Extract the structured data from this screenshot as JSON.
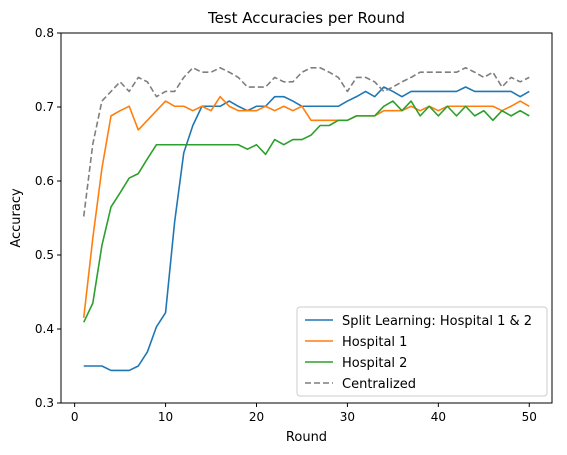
{
  "chart_data": {
    "type": "line",
    "title": "Test Accuracies per Round",
    "xlabel": "Round",
    "ylabel": "Accuracy",
    "xlim": [
      -1.5,
      52.5
    ],
    "ylim": [
      0.3,
      0.8
    ],
    "xticks": [
      0,
      10,
      20,
      30,
      40,
      50
    ],
    "yticks": [
      0.3,
      0.4,
      0.5,
      0.6,
      0.7,
      0.8
    ],
    "grid": false,
    "legend_position": "bottom-right",
    "x": [
      1,
      2,
      3,
      4,
      5,
      6,
      7,
      8,
      9,
      10,
      11,
      12,
      13,
      14,
      15,
      16,
      17,
      18,
      19,
      20,
      21,
      22,
      23,
      24,
      25,
      26,
      27,
      28,
      29,
      30,
      31,
      32,
      33,
      34,
      35,
      36,
      37,
      38,
      39,
      40,
      41,
      42,
      43,
      44,
      45,
      46,
      47,
      48,
      49,
      50
    ],
    "series": [
      {
        "name": "Split Learning: Hospital 1 & 2",
        "color": "#1f77b4",
        "dashed": false,
        "values": [
          0.35,
          0.35,
          0.35,
          0.344,
          0.344,
          0.344,
          0.35,
          0.369,
          0.403,
          0.422,
          0.545,
          0.638,
          0.675,
          0.701,
          0.701,
          0.701,
          0.708,
          0.701,
          0.695,
          0.701,
          0.701,
          0.714,
          0.714,
          0.708,
          0.701,
          0.701,
          0.701,
          0.701,
          0.701,
          0.708,
          0.714,
          0.721,
          0.714,
          0.727,
          0.721,
          0.714,
          0.721,
          0.721,
          0.721,
          0.721,
          0.721,
          0.721,
          0.727,
          0.721,
          0.721,
          0.721,
          0.721,
          0.721,
          0.714,
          0.721
        ]
      },
      {
        "name": "Hospital 1",
        "color": "#ff7f0e",
        "dashed": false,
        "values": [
          0.415,
          0.523,
          0.617,
          0.688,
          0.695,
          0.701,
          0.669,
          0.682,
          0.695,
          0.708,
          0.701,
          0.701,
          0.695,
          0.701,
          0.695,
          0.714,
          0.701,
          0.695,
          0.695,
          0.695,
          0.701,
          0.695,
          0.701,
          0.695,
          0.701,
          0.682,
          0.682,
          0.682,
          0.682,
          0.682,
          0.688,
          0.688,
          0.688,
          0.695,
          0.695,
          0.695,
          0.701,
          0.695,
          0.701,
          0.695,
          0.701,
          0.701,
          0.701,
          0.701,
          0.701,
          0.701,
          0.695,
          0.701,
          0.708,
          0.701
        ]
      },
      {
        "name": "Hospital 2",
        "color": "#2ca02c",
        "dashed": false,
        "values": [
          0.409,
          0.435,
          0.513,
          0.565,
          0.584,
          0.604,
          0.61,
          0.63,
          0.649,
          0.649,
          0.649,
          0.649,
          0.649,
          0.649,
          0.649,
          0.649,
          0.649,
          0.649,
          0.643,
          0.649,
          0.636,
          0.656,
          0.649,
          0.656,
          0.656,
          0.662,
          0.675,
          0.675,
          0.682,
          0.682,
          0.688,
          0.688,
          0.688,
          0.701,
          0.708,
          0.695,
          0.708,
          0.688,
          0.701,
          0.688,
          0.701,
          0.688,
          0.701,
          0.688,
          0.695,
          0.682,
          0.695,
          0.688,
          0.695,
          0.688
        ]
      },
      {
        "name": "Centralized",
        "color": "#7f7f7f",
        "dashed": true,
        "values": [
          0.552,
          0.65,
          0.708,
          0.721,
          0.734,
          0.721,
          0.74,
          0.734,
          0.714,
          0.721,
          0.721,
          0.74,
          0.753,
          0.747,
          0.747,
          0.753,
          0.747,
          0.74,
          0.727,
          0.727,
          0.727,
          0.74,
          0.734,
          0.734,
          0.747,
          0.753,
          0.753,
          0.747,
          0.74,
          0.721,
          0.74,
          0.74,
          0.734,
          0.721,
          0.727,
          0.734,
          0.74,
          0.747,
          0.747,
          0.747,
          0.747,
          0.747,
          0.753,
          0.747,
          0.74,
          0.747,
          0.727,
          0.74,
          0.734,
          0.74
        ]
      }
    ]
  }
}
